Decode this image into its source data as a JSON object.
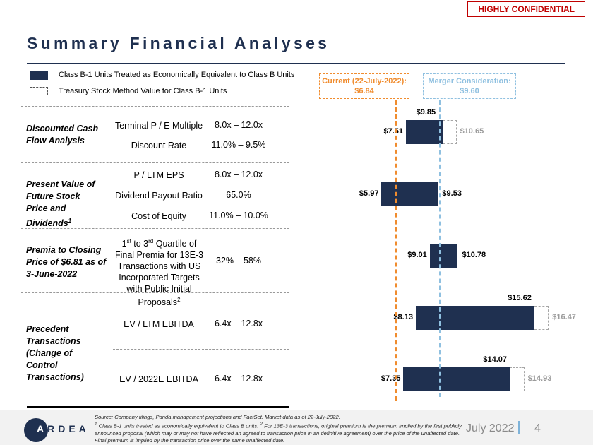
{
  "confidential": "HIGHLY CONFIDENTIAL",
  "title": "Summary Financial Analyses",
  "legend": {
    "solid": "Class B-1 Units Treated as Economically Equivalent to Class B Units",
    "dashed": "Treasury Stock Method Value for Class B-1 Units"
  },
  "methods": [
    {
      "name": "Discounted Cash Flow Analysis",
      "params": [
        {
          "label": "Terminal P / E Multiple",
          "range": "8.0x – 12.0x"
        },
        {
          "label": "Discount Rate",
          "range": "11.0% – 9.5%"
        }
      ]
    },
    {
      "name": "Present Value of Future Stock Price and Dividends",
      "sup": "1",
      "params": [
        {
          "label": "P / LTM EPS",
          "range": "8.0x – 12.0x"
        },
        {
          "label": "Dividend Payout Ratio",
          "range": "65.0%"
        },
        {
          "label": "Cost of Equity",
          "range": "11.0% – 10.0%"
        }
      ]
    },
    {
      "name": "Premia to Closing Price of $6.81 as of 3-June-2022",
      "params": [
        {
          "label_a": "1",
          "sup_a": "st",
          "label_b": " to 3",
          "sup_b": "rd",
          "label_c": " Quartile of Final Premia for 13E-3 Transactions with US Incorporated Targets with Public Initial Proposals",
          "sup_c": "2",
          "range": "32% – 58%"
        }
      ]
    },
    {
      "name": "Precedent Transactions (Change of Control Transactions)",
      "params": [
        {
          "label": "EV / LTM EBITDA",
          "range": "6.4x – 12.8x"
        },
        {
          "label": "EV / 2022E EBITDA",
          "range": "6.4x – 12.8x"
        }
      ]
    }
  ],
  "chart_data": {
    "type": "floating-bar",
    "orientation": "horizontal",
    "colors": {
      "bar": "#1f3050",
      "treasury": "#a6a6a6",
      "current": "#f08c2e",
      "merger": "#8fc0e0"
    },
    "reference_lines": [
      {
        "label": "Current (22-July-2022): $6.84",
        "value": 6.84,
        "color": "#f08c2e"
      },
      {
        "label": "Merger Consideration: $9.60",
        "value": 9.6,
        "color": "#8fc0e0"
      }
    ],
    "bars": [
      {
        "low": 7.51,
        "high": 9.85,
        "treasury_high": 10.65,
        "low_label": "$7.51",
        "high_label": "$9.85",
        "treasury_label": "$10.65"
      },
      {
        "low": 5.97,
        "high": 9.53,
        "low_label": "$5.97",
        "high_label": "$9.53"
      },
      {
        "low": 9.01,
        "high": 10.78,
        "low_label": "$9.01",
        "high_label": "$10.78"
      },
      {
        "low": 8.13,
        "high": 15.62,
        "treasury_high": 16.47,
        "low_label": "$8.13",
        "high_label": "$15.62",
        "treasury_label": "$16.47"
      },
      {
        "low": 7.35,
        "high": 14.07,
        "treasury_high": 14.93,
        "low_label": "$7.35",
        "high_label": "$14.07",
        "treasury_label": "$14.93"
      }
    ]
  },
  "footer": {
    "logo": "ARDEA",
    "source": "Source: Company filings, Panda management projections and FactSet. Market data as of 22-July-2022.",
    "note1": "Class B-1 units treated as economically equivalent to Class B units. ",
    "note2": "For 13E-3 transactions, original premium is the premium implied by the first publicly announced proposal (which may or may not have reflected an agreed to transaction price in an definitive agreement) over the price of the unaffected date. Final premium is implied by the transaction price over the same unaffected date.",
    "sup1": "1",
    "sup2": "2",
    "date": "July 2022",
    "page": "4"
  }
}
